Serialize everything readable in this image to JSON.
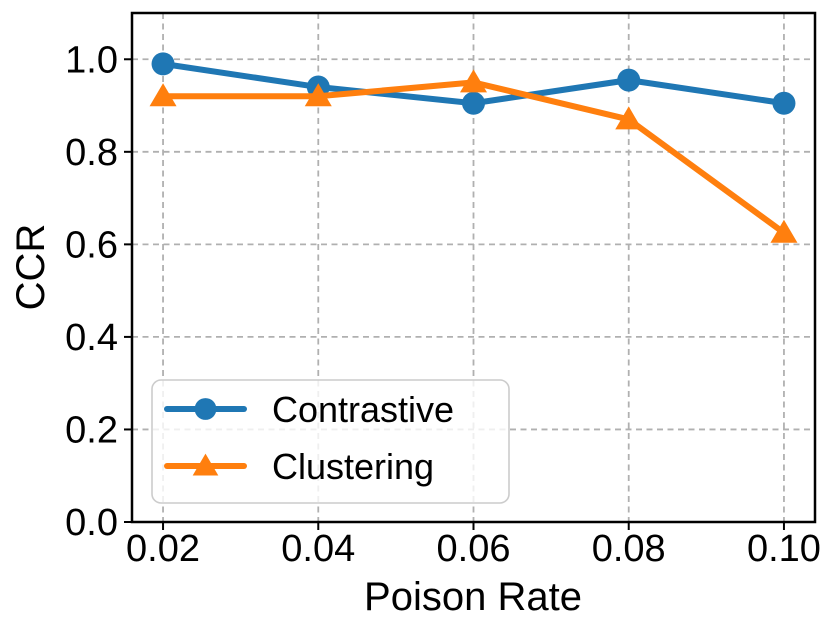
{
  "figure": {
    "background": "#ffffff",
    "text_color": "#000000",
    "grid_color": "#b0b0b0",
    "spine_color": "#000000",
    "legend_border_color": "#cccccc"
  },
  "chart_data": {
    "type": "line",
    "title": "",
    "xlabel": "Poison Rate",
    "ylabel": "CCR",
    "x": [
      0.02,
      0.04,
      0.06,
      0.08,
      0.1
    ],
    "x_tick_labels": [
      "0.02",
      "0.04",
      "0.06",
      "0.08",
      "0.10"
    ],
    "y_ticks": [
      0.0,
      0.2,
      0.4,
      0.6,
      0.8,
      1.0
    ],
    "y_tick_labels": [
      "0.0",
      "0.2",
      "0.4",
      "0.6",
      "0.8",
      "1.0"
    ],
    "xlim": [
      0.016,
      0.104
    ],
    "ylim": [
      0.0,
      1.1
    ],
    "grid": true,
    "grid_style": "dashed",
    "legend_position": "lower-left",
    "series": [
      {
        "name": "Contrastive",
        "color": "#1f77b4",
        "marker": "circle",
        "values": [
          0.99,
          0.94,
          0.905,
          0.955,
          0.905
        ]
      },
      {
        "name": "Clustering",
        "color": "#ff7f0e",
        "marker": "triangle",
        "values": [
          0.92,
          0.92,
          0.95,
          0.87,
          0.625
        ]
      }
    ]
  }
}
